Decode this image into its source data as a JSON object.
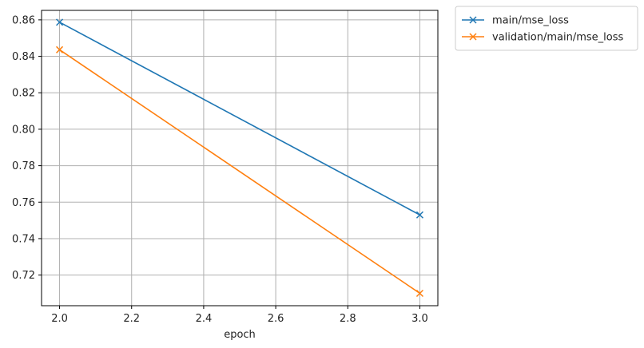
{
  "chart_data": {
    "type": "line",
    "xlabel": "epoch",
    "ylabel": "",
    "xlim": [
      1.95,
      3.05
    ],
    "ylim": [
      0.7032,
      0.8652
    ],
    "xticks": [
      2.0,
      2.2,
      2.4,
      2.6,
      2.8,
      3.0
    ],
    "xtick_labels": [
      "2.0",
      "2.2",
      "2.4",
      "2.6",
      "2.8",
      "3.0"
    ],
    "yticks": [
      0.72,
      0.74,
      0.76,
      0.78,
      0.8,
      0.82,
      0.84,
      0.86
    ],
    "ytick_labels": [
      "0.72",
      "0.74",
      "0.76",
      "0.78",
      "0.80",
      "0.82",
      "0.84",
      "0.86"
    ],
    "grid": true,
    "legend_position": "outside-top-right",
    "series": [
      {
        "name": "main/mse_loss",
        "color": "#1f77b4",
        "marker": "x",
        "x": [
          2.0,
          3.0
        ],
        "y": [
          0.8587,
          0.753
        ]
      },
      {
        "name": "validation/main/mse_loss",
        "color": "#ff7f0e",
        "marker": "x",
        "x": [
          2.0,
          3.0
        ],
        "y": [
          0.8436,
          0.71
        ]
      }
    ]
  }
}
